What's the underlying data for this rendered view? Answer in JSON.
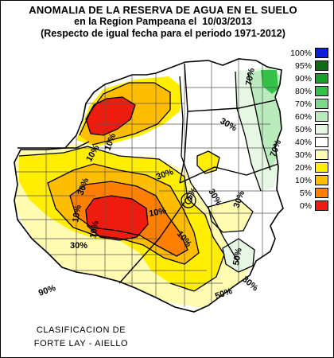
{
  "title": {
    "line1": "ANOMALIA DE LA RESERVA DE AGUA EN EL SUELO",
    "line2_prefix": "en la Region Pampeana el",
    "line2_date": "10/03/2013",
    "line3": "(Respecto de igual fecha para el periodo 1971-2012)"
  },
  "legend": [
    {
      "label": "100%",
      "color": "#0a1fd6"
    },
    {
      "label": "95%",
      "color": "#0a6e14"
    },
    {
      "label": "90%",
      "color": "#16a02a"
    },
    {
      "label": "80%",
      "color": "#33c14a"
    },
    {
      "label": "70%",
      "color": "#7ed88a"
    },
    {
      "label": "60%",
      "color": "#b9ebbc"
    },
    {
      "label": "50%",
      "color": "#e6f8e4"
    },
    {
      "label": "40%",
      "color": "#ffffff"
    },
    {
      "label": "30%",
      "color": "#fffbb0"
    },
    {
      "label": "20%",
      "color": "#ffee00"
    },
    {
      "label": "10%",
      "color": "#ffbd00"
    },
    {
      "label": "5%",
      "color": "#ff8000"
    },
    {
      "label": "0%",
      "color": "#ee1c0e"
    }
  ],
  "map_labels": [
    {
      "text": "70%"
    },
    {
      "text": "30%"
    },
    {
      "text": "70%"
    },
    {
      "text": "10%"
    },
    {
      "text": "10%"
    },
    {
      "text": "30%"
    },
    {
      "text": "30%"
    },
    {
      "text": "5%"
    },
    {
      "text": "10%"
    },
    {
      "text": "10%"
    },
    {
      "text": "30%"
    },
    {
      "text": "10%"
    },
    {
      "text": "30%"
    },
    {
      "text": "10%"
    },
    {
      "text": "50%"
    },
    {
      "text": "30%"
    },
    {
      "text": "90%"
    },
    {
      "text": "50%"
    },
    {
      "text": "30%"
    }
  ],
  "credit": {
    "line1": "CLASIFICACION DE",
    "line2": "FORTE LAY - AIELLO"
  }
}
